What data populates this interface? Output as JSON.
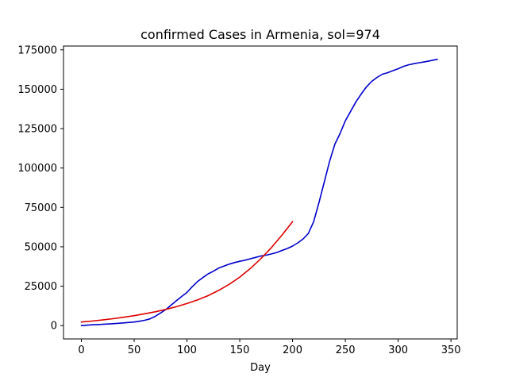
{
  "chart_data": {
    "type": "line",
    "title": "confirmed Cases in Armenia, sol=974",
    "xlabel": "Day",
    "ylabel": "",
    "xlim": [
      -16.9,
      355.9
    ],
    "ylim": [
      -8450,
      177400
    ],
    "x_ticks": [
      0,
      50,
      100,
      150,
      200,
      250,
      300,
      350
    ],
    "x_tick_labels": [
      "0",
      "50",
      "100",
      "150",
      "200",
      "250",
      "300",
      "350"
    ],
    "y_ticks": [
      0,
      25000,
      50000,
      75000,
      100000,
      125000,
      150000,
      175000
    ],
    "y_tick_labels": [
      "0",
      "25000",
      "50000",
      "75000",
      "100000",
      "125000",
      "150000",
      "175000"
    ],
    "grid": false,
    "legend": "none",
    "series": [
      {
        "color": "#0000cc",
        "x": [
          0,
          10,
          20,
          30,
          40,
          50,
          55,
          60,
          65,
          70,
          75,
          80,
          85,
          90,
          95,
          100,
          105,
          110,
          115,
          120,
          125,
          130,
          135,
          140,
          145,
          150,
          155,
          160,
          165,
          170,
          175,
          180,
          185,
          190,
          195,
          200,
          205,
          210,
          215,
          220,
          225,
          230,
          235,
          240,
          245,
          250,
          255,
          260,
          265,
          270,
          275,
          280,
          285,
          290,
          295,
          300,
          305,
          310,
          315,
          320,
          325,
          330,
          337
        ],
        "y": [
          0,
          500,
          800,
          1200,
          1700,
          2300,
          2800,
          3400,
          4300,
          5900,
          8000,
          10200,
          13000,
          15800,
          18500,
          21000,
          24700,
          27900,
          30500,
          32800,
          34500,
          36500,
          37800,
          39000,
          40000,
          40800,
          41500,
          42400,
          43300,
          44200,
          44700,
          45500,
          46400,
          47700,
          48900,
          50500,
          52500,
          55000,
          58500,
          66000,
          78000,
          91000,
          104000,
          115000,
          122000,
          130000,
          136000,
          142000,
          147000,
          151500,
          155000,
          157500,
          159500,
          160500,
          161800,
          163000,
          164500,
          165500,
          166200,
          166800,
          167400,
          168000,
          169000
        ]
      },
      {
        "color": "#dd0000",
        "x": [
          0,
          10,
          20,
          30,
          40,
          50,
          60,
          70,
          80,
          90,
          100,
          110,
          120,
          130,
          140,
          150,
          160,
          170,
          180,
          190,
          200
        ],
        "y": [
          2300,
          2900,
          3600,
          4400,
          5300,
          6300,
          7500,
          8800,
          10300,
          12000,
          14000,
          16300,
          19000,
          22300,
          26200,
          30800,
          36200,
          42500,
          49500,
          57500,
          66000
        ]
      }
    ]
  }
}
